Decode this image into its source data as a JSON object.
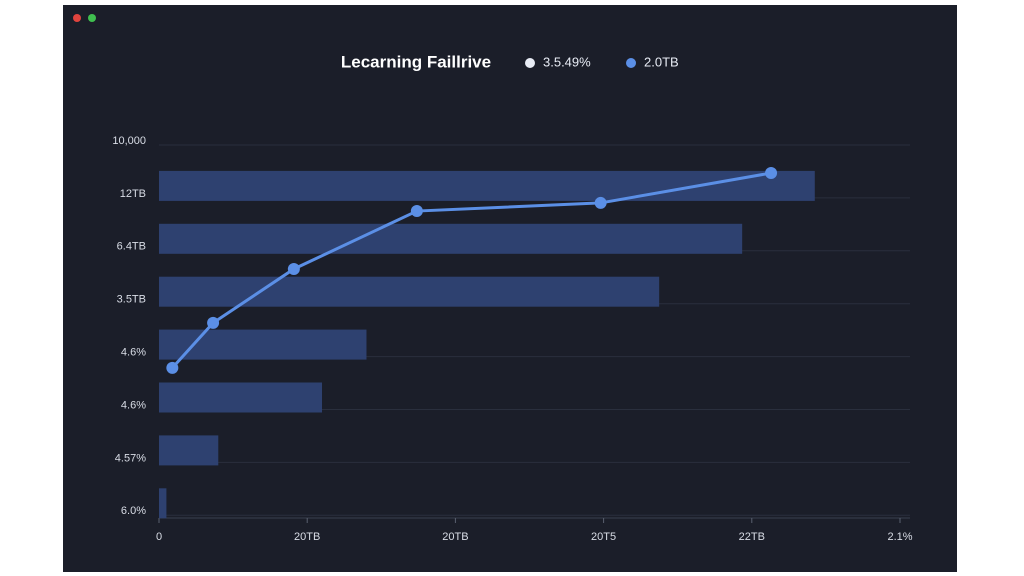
{
  "chart_data": {
    "type": "bar",
    "title": "Lecarning Faillrive",
    "categories": [
      "10,000",
      "12TB",
      "6.4TB",
      "3.5TB",
      "4.6%",
      "4.6%",
      "4.57%",
      "6.0%"
    ],
    "series": [
      {
        "name": "3.5.49%",
        "color": "#2e4170",
        "legend_color": "#e8ecf5",
        "values": [
          null,
          88.5,
          78.7,
          67.5,
          28,
          22,
          8,
          1
        ]
      },
      {
        "name": "2.0TB",
        "type": "line",
        "color": "#5b8fe6",
        "axis": "y2",
        "x": [
          1.8,
          7.3,
          18.2,
          34.8,
          59.6,
          82.6
        ],
        "values": [
          39.6,
          51.8,
          66.4,
          82.1,
          84.3,
          92.4
        ]
      }
    ],
    "xlim": [
      0,
      100
    ],
    "xticks": [
      0,
      {
        "value": 20,
        "label": "20TB"
      },
      {
        "value": 40,
        "label": "20TB"
      },
      {
        "value": 60,
        "label": "20T5"
      },
      {
        "value": 80,
        "label": "22TB"
      },
      {
        "value": 100,
        "label": "2.1%"
      }
    ],
    "y2lim": [
      0,
      100
    ],
    "grid": true
  }
}
